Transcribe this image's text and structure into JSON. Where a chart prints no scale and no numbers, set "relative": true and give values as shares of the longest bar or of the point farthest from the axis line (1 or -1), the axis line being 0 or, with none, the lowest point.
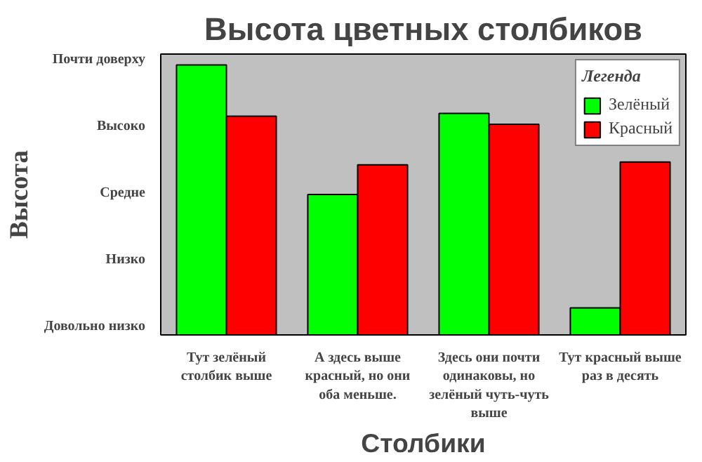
{
  "chart_data": {
    "type": "bar",
    "title": "Высота цветных столбиков",
    "xlabel": "Столбики",
    "ylabel": "Высота",
    "relative": true,
    "categories": [
      "Тут зелёный столбик выше",
      "А здесь выше красный, но они оба меньше.",
      "Здесь они почти одинаковы, но зелёный чуть-чуть выше",
      "Тут красный выше раз в десять"
    ],
    "series": [
      {
        "name": "Зелёный",
        "color": "#00ff00",
        "values": [
          1,
          0.52,
          0.82,
          0.1
        ]
      },
      {
        "name": "Красный",
        "color": "#ff0000",
        "values": [
          0.81,
          0.63,
          0.78,
          0.64
        ]
      }
    ],
    "annotations": [
      "Почти доверху",
      "Высоко",
      "Средне",
      "Низко",
      "Довольно низко"
    ],
    "legend": "top right",
    "legend_title": "Легенда",
    "grid": false
  }
}
